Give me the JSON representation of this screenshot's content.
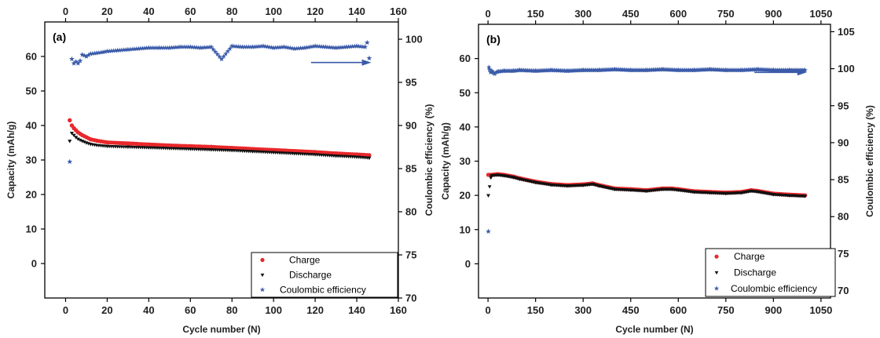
{
  "chart_data": [
    {
      "type": "scatter",
      "panel_label": "(a)",
      "xlabel": "Cycle number (N)",
      "ylabel_left": "Capacity (mAh/g)",
      "ylabel_right": "Coulombic efficiency (%)",
      "xlim": [
        -10,
        160
      ],
      "x_ticks": [
        0,
        20,
        40,
        60,
        80,
        100,
        120,
        140,
        160
      ],
      "x_tick_labels": [
        "0",
        "20",
        "40",
        "60",
        "80",
        "100",
        "120",
        "140",
        "160"
      ],
      "ylim_left": [
        -10,
        70
      ],
      "y_ticks_left": [
        0,
        10,
        20,
        30,
        40,
        50,
        60
      ],
      "y_tick_labels_left": [
        "0",
        "10",
        "20",
        "30",
        "40",
        "50",
        "60"
      ],
      "ylim_right": [
        70,
        102
      ],
      "y_ticks_right": [
        70,
        75,
        80,
        85,
        90,
        95,
        100
      ],
      "y_tick_labels_right": [
        "70",
        "75",
        "80",
        "85",
        "90",
        "95",
        "100"
      ],
      "legend_position": "bottom-right",
      "efficiency_arrow": {
        "from_x": 118,
        "to_x": 147,
        "y_percent": 97.3
      },
      "series": [
        {
          "name": "Charge",
          "axis": "left",
          "color": "#e8282b",
          "marker": "circle",
          "x": [
            2,
            3,
            4,
            5,
            6,
            8,
            10,
            12,
            15,
            20,
            30,
            40,
            50,
            60,
            70,
            80,
            90,
            100,
            110,
            120,
            130,
            140,
            146
          ],
          "y": [
            41.5,
            40.0,
            39.2,
            38.6,
            38.0,
            37.2,
            36.6,
            36.0,
            35.6,
            35.1,
            34.8,
            34.5,
            34.2,
            34.0,
            33.8,
            33.5,
            33.2,
            32.9,
            32.6,
            32.3,
            31.9,
            31.6,
            31.4
          ]
        },
        {
          "name": "Discharge",
          "axis": "left",
          "color": "#111111",
          "marker": "triangle",
          "x": [
            2,
            3,
            4,
            5,
            6,
            8,
            10,
            12,
            15,
            20,
            30,
            40,
            50,
            60,
            70,
            80,
            90,
            100,
            110,
            120,
            130,
            140,
            146
          ],
          "y": [
            35.5,
            37.8,
            37.2,
            36.6,
            36.1,
            35.5,
            35.0,
            34.6,
            34.3,
            34.0,
            33.8,
            33.6,
            33.4,
            33.2,
            33.0,
            32.8,
            32.5,
            32.2,
            31.9,
            31.6,
            31.2,
            30.9,
            30.6
          ]
        },
        {
          "name": "Coulombic efficiency",
          "axis": "right",
          "color": "#3b5ba9",
          "marker": "star",
          "x": [
            2,
            3,
            4,
            5,
            6,
            7,
            8,
            10,
            12,
            15,
            18,
            20,
            25,
            30,
            35,
            40,
            45,
            50,
            55,
            60,
            65,
            70,
            75,
            80,
            85,
            90,
            95,
            100,
            105,
            110,
            115,
            120,
            125,
            130,
            135,
            140,
            144,
            145,
            146
          ],
          "y": [
            85.8,
            97.7,
            97.2,
            97.4,
            97.2,
            97.5,
            98.2,
            98.0,
            98.3,
            98.4,
            98.5,
            98.6,
            98.7,
            98.8,
            98.9,
            99.0,
            99.0,
            99.0,
            99.1,
            99.1,
            99.0,
            99.1,
            97.7,
            99.2,
            99.1,
            99.1,
            99.2,
            99.0,
            99.1,
            98.9,
            99.0,
            99.2,
            99.1,
            99.0,
            99.1,
            99.2,
            99.1,
            99.6,
            97.8
          ]
        }
      ]
    },
    {
      "type": "scatter",
      "panel_label": "(b)",
      "xlabel": "Cycle number (N)",
      "ylabel_left": "Capacity (mAh/g)",
      "ylabel_right": "Coulombic efficiency (%)",
      "xlim": [
        -30,
        1080
      ],
      "x_ticks": [
        0,
        150,
        300,
        450,
        600,
        750,
        900,
        1050
      ],
      "x_tick_labels": [
        "0",
        "150",
        "300",
        "450",
        "600",
        "750",
        "900",
        "1050"
      ],
      "ylim_left": [
        -10,
        70
      ],
      "y_ticks_left": [
        0,
        10,
        20,
        30,
        40,
        50,
        60
      ],
      "y_tick_labels_left": [
        "0",
        "10",
        "20",
        "30",
        "40",
        "50",
        "60"
      ],
      "ylim_right": [
        69,
        106
      ],
      "y_ticks_right": [
        70,
        75,
        80,
        85,
        90,
        95,
        100,
        105
      ],
      "y_tick_labels_right": [
        "70",
        "75",
        "80",
        "85",
        "90",
        "95",
        "100",
        "105"
      ],
      "legend_position": "bottom-right",
      "efficiency_arrow": {
        "from_x": 840,
        "to_x": 1005,
        "y_percent": 99.5
      },
      "series": [
        {
          "name": "Charge",
          "axis": "left",
          "color": "#e8282b",
          "marker": "circle",
          "x": [
            1,
            10,
            30,
            50,
            80,
            100,
            150,
            200,
            250,
            300,
            330,
            350,
            400,
            450,
            500,
            550,
            580,
            600,
            650,
            700,
            750,
            800,
            830,
            850,
            900,
            950,
            1000
          ],
          "y": [
            26.0,
            26.0,
            26.2,
            26.0,
            25.5,
            25.0,
            24.0,
            23.3,
            23.0,
            23.2,
            23.5,
            23.0,
            22.0,
            21.8,
            21.5,
            22.0,
            22.0,
            21.8,
            21.2,
            21.0,
            20.8,
            21.0,
            21.5,
            21.3,
            20.5,
            20.2,
            20.0
          ]
        },
        {
          "name": "Discharge",
          "axis": "left",
          "color": "#111111",
          "marker": "triangle",
          "x": [
            1,
            10,
            30,
            50,
            80,
            100,
            150,
            200,
            250,
            300,
            330,
            350,
            400,
            450,
            500,
            550,
            580,
            600,
            650,
            700,
            750,
            800,
            830,
            850,
            900,
            950,
            1000
          ],
          "y": [
            20.0,
            25.8,
            26.0,
            25.8,
            25.3,
            24.8,
            23.8,
            23.1,
            22.8,
            23.0,
            23.3,
            22.8,
            21.8,
            21.6,
            21.3,
            21.8,
            21.8,
            21.6,
            21.0,
            20.8,
            20.6,
            20.8,
            21.3,
            21.1,
            20.3,
            20.0,
            19.8
          ]
        },
        {
          "name": "Coulombic efficiency",
          "axis": "right",
          "color": "#3b5ba9",
          "marker": "star",
          "x": [
            1,
            3,
            5,
            8,
            12,
            20,
            30,
            50,
            80,
            100,
            150,
            200,
            250,
            300,
            350,
            400,
            450,
            500,
            550,
            600,
            650,
            700,
            750,
            800,
            850,
            900,
            950,
            1000
          ],
          "y": [
            78.0,
            100.2,
            99.9,
            99.5,
            99.7,
            99.3,
            99.6,
            99.7,
            99.7,
            99.8,
            99.7,
            99.8,
            99.7,
            99.8,
            99.8,
            99.9,
            99.8,
            99.8,
            99.9,
            99.8,
            99.8,
            99.9,
            99.8,
            99.8,
            99.9,
            99.8,
            99.8,
            99.8
          ]
        }
      ]
    }
  ]
}
